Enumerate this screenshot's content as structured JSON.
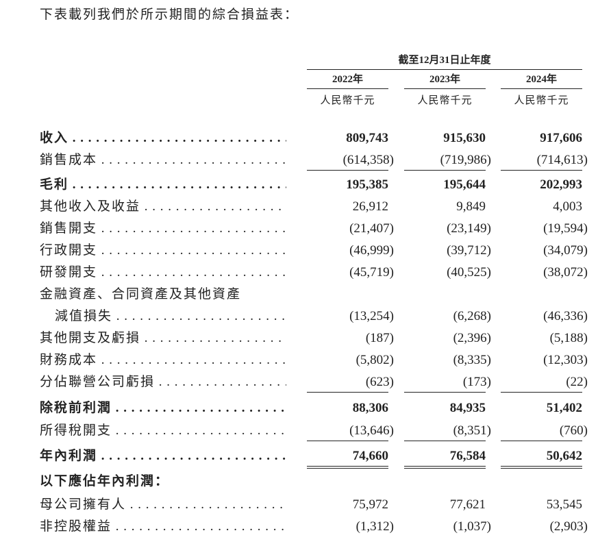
{
  "intro": "下表載列我們於所示期間的綜合損益表：",
  "table": {
    "period_header": "截至12月31日止年度",
    "columns": [
      {
        "year": "2022年",
        "unit": "人民幣千元"
      },
      {
        "year": "2023年",
        "unit": "人民幣千元"
      },
      {
        "year": "2024年",
        "unit": "人民幣千元"
      }
    ],
    "rows": [
      {
        "label": "收入",
        "values": [
          "809,743",
          "915,630",
          "917,606"
        ],
        "bold": true
      },
      {
        "label": "銷售成本",
        "values": [
          "(614,358)",
          "(719,986)",
          "(714,613)"
        ],
        "rule": "single"
      },
      {
        "label": "毛利",
        "values": [
          "195,385",
          "195,644",
          "202,993"
        ],
        "bold": true
      },
      {
        "label": "其他收入及收益",
        "values": [
          "26,912",
          "9,849",
          "4,003"
        ]
      },
      {
        "label": "銷售開支",
        "values": [
          "(21,407)",
          "(23,149)",
          "(19,594)"
        ]
      },
      {
        "label": "行政開支",
        "values": [
          "(46,999)",
          "(39,712)",
          "(34,079)"
        ]
      },
      {
        "label": "研發開支",
        "values": [
          "(45,719)",
          "(40,525)",
          "(38,072)"
        ]
      },
      {
        "label": "金融資產、合同資產及其他資產",
        "values": []
      },
      {
        "label": "減值損失",
        "values": [
          "(13,254)",
          "(6,268)",
          "(46,336)"
        ],
        "indent": true
      },
      {
        "label": "其他開支及虧損",
        "values": [
          "(187)",
          "(2,396)",
          "(5,188)"
        ]
      },
      {
        "label": "財務成本",
        "values": [
          "(5,802)",
          "(8,335)",
          "(12,303)"
        ]
      },
      {
        "label": "分佔聯營公司虧損",
        "values": [
          "(623)",
          "(173)",
          "(22)"
        ],
        "rule": "single"
      },
      {
        "label": "除稅前利潤",
        "values": [
          "88,306",
          "84,935",
          "51,402"
        ],
        "bold": true
      },
      {
        "label": "所得稅開支",
        "values": [
          "(13,646)",
          "(8,351)",
          "(760)"
        ],
        "rule": "single"
      },
      {
        "label": "年內利潤",
        "values": [
          "74,660",
          "76,584",
          "50,642"
        ],
        "bold": true,
        "rule": "double"
      },
      {
        "label": "以下應佔年內利潤：",
        "values": [],
        "bold": true
      },
      {
        "label": "母公司擁有人",
        "values": [
          "75,972",
          "77,621",
          "53,545"
        ]
      },
      {
        "label": "非控股權益",
        "values": [
          "(1,312)",
          "(1,037)",
          "(2,903)"
        ]
      }
    ]
  }
}
